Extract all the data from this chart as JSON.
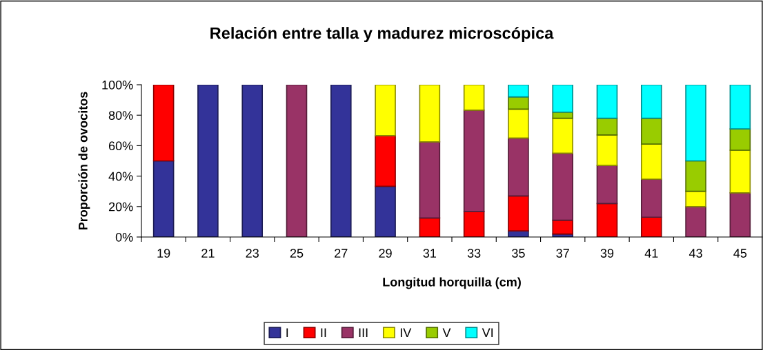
{
  "chart_data": {
    "type": "bar",
    "stacked": true,
    "title": "Relación entre talla y madurez microscópica",
    "xlabel": "Longitud horquilla (cm)",
    "ylabel": "Proporción de ovocitos",
    "categories": [
      "19",
      "21",
      "23",
      "25",
      "27",
      "29",
      "31",
      "33",
      "35",
      "37",
      "39",
      "41",
      "43",
      "45"
    ],
    "series": [
      {
        "name": "I",
        "color": "#333399",
        "values": [
          50,
          100,
          100,
          null,
          100,
          33.3,
          null,
          null,
          4,
          2,
          null,
          null,
          null,
          null
        ]
      },
      {
        "name": "II",
        "color": "#ff0000",
        "values": [
          50,
          null,
          null,
          null,
          null,
          33.3,
          12.5,
          16.7,
          23,
          9,
          22,
          13,
          null,
          null
        ]
      },
      {
        "name": "III",
        "color": "#993366",
        "values": [
          null,
          null,
          null,
          100,
          null,
          null,
          50,
          66.6,
          38,
          44,
          25,
          25,
          20,
          29
        ]
      },
      {
        "name": "IV",
        "color": "#ffff00",
        "values": [
          null,
          null,
          null,
          null,
          null,
          33.4,
          37.5,
          16.7,
          19,
          23,
          20,
          23,
          10,
          28
        ]
      },
      {
        "name": "V",
        "color": "#99cc00",
        "values": [
          null,
          null,
          null,
          null,
          null,
          null,
          null,
          null,
          8,
          4,
          11,
          17,
          20,
          14
        ]
      },
      {
        "name": "VI",
        "color": "#00ffff",
        "values": [
          null,
          null,
          null,
          null,
          null,
          null,
          null,
          null,
          8,
          18,
          22,
          22,
          50,
          29
        ]
      }
    ],
    "ylim": [
      0,
      100
    ],
    "yticks": [
      {
        "value": 0,
        "label": "0%"
      },
      {
        "value": 20,
        "label": "20%"
      },
      {
        "value": 40,
        "label": "40%"
      },
      {
        "value": 60,
        "label": "60%"
      },
      {
        "value": 80,
        "label": "80%"
      },
      {
        "value": 100,
        "label": "100%"
      }
    ],
    "grid": false,
    "legend": "bottom"
  }
}
